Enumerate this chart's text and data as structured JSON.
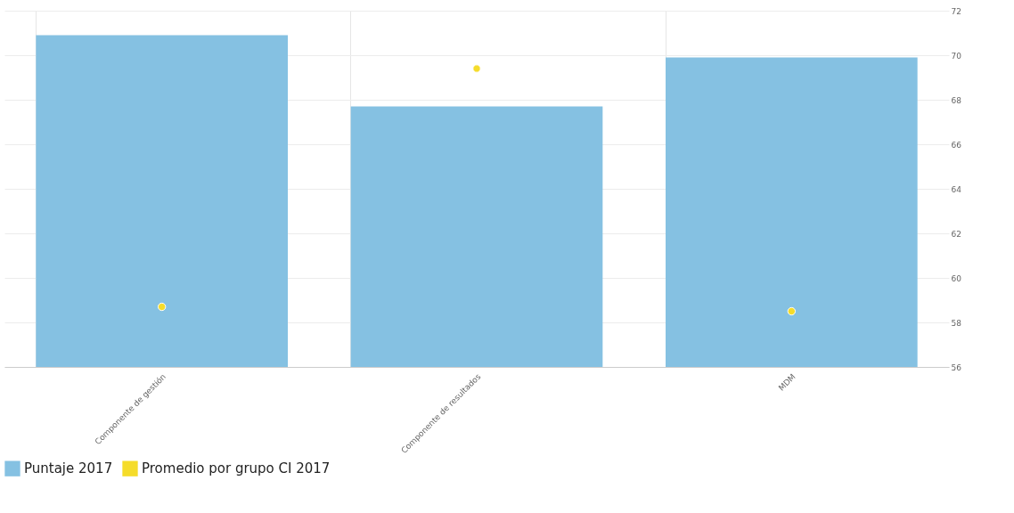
{
  "chart_data": {
    "type": "bar",
    "categories": [
      "Componente de gestión",
      "Componente de resultados",
      "MDM"
    ],
    "series": [
      {
        "name": "Puntaje 2017",
        "color": "#85c1e2",
        "values": [
          70.9,
          67.7,
          69.9
        ]
      },
      {
        "name": "Promedio por grupo CI 2017",
        "type": "scatter",
        "color": "#f5dc2a",
        "values": [
          58.7,
          69.4,
          58.5
        ]
      }
    ],
    "ylim": [
      56,
      72
    ],
    "yticks": [
      56,
      58,
      60,
      62,
      64,
      66,
      68,
      70,
      72
    ],
    "grid": true,
    "legend": "bottom left",
    "marker": "circle"
  }
}
